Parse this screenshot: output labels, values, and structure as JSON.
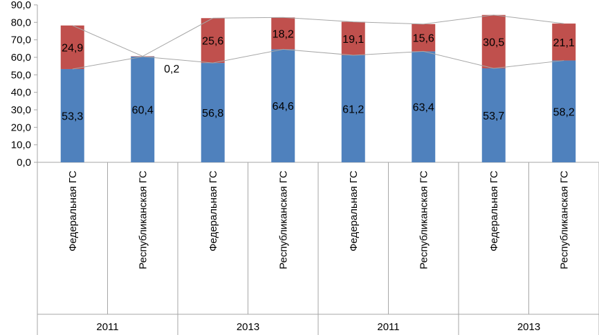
{
  "chart_data": {
    "type": "bar",
    "stacked": true,
    "title": "",
    "xlabel": "",
    "ylabel": "",
    "ylim": [
      0,
      90
    ],
    "y_ticks": [
      "0,0",
      "10,0",
      "20,0",
      "30,0",
      "40,0",
      "50,0",
      "60,0",
      "70,0",
      "80,0",
      "90,0"
    ],
    "categories": [
      "Федеральная ГС",
      "Республиканская ГС",
      "Федеральная ГС",
      "Республиканская ГС",
      "Федеральная ГС",
      "Республиканская ГС",
      "Федеральная ГС",
      "Республиканская ГС"
    ],
    "groups": [
      "2011",
      "2013",
      "2011",
      "2013"
    ],
    "series": [
      {
        "name": "bottom",
        "color": "#4f81bd",
        "values": [
          53.3,
          60.4,
          56.8,
          64.6,
          61.2,
          63.4,
          53.7,
          58.2
        ],
        "labels": [
          "53,3",
          "60,4",
          "56,8",
          "64,6",
          "61,2",
          "63,4",
          "53,7",
          "58,2"
        ]
      },
      {
        "name": "top",
        "color": "#c0504d",
        "values": [
          24.9,
          0.2,
          25.6,
          18.2,
          19.1,
          15.6,
          30.5,
          21.1
        ],
        "labels": [
          "24,9",
          "0,2",
          "25,6",
          "18,2",
          "19,1",
          "15,6",
          "30,5",
          "21,1"
        ]
      }
    ],
    "series_lines": true,
    "grid": false,
    "legend": "none"
  }
}
